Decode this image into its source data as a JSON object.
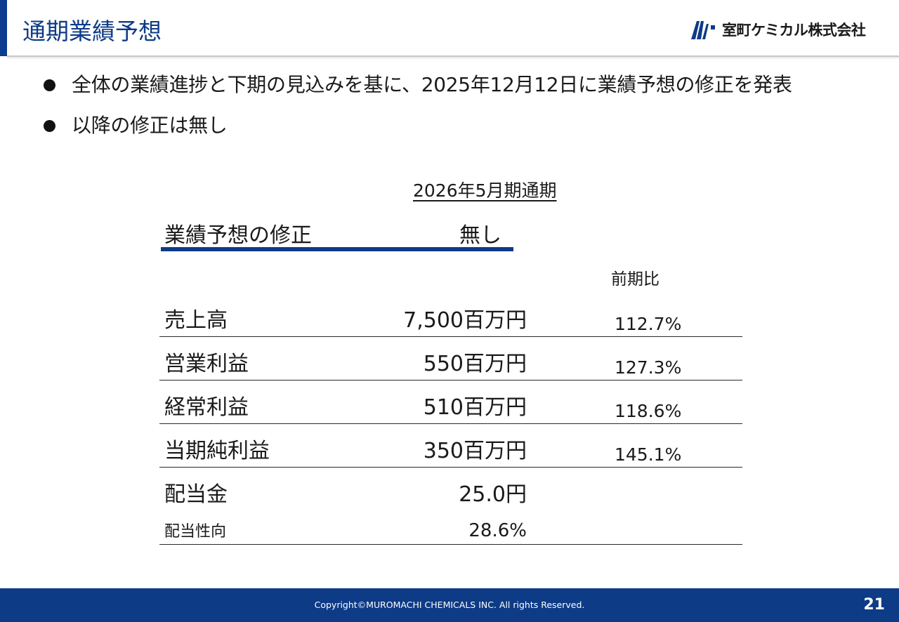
{
  "slide": {
    "title": "通期業績予想",
    "logo_text": "室町ケミカル株式会社",
    "accent_color": "#0d3b86"
  },
  "bullets": [
    "全体の業績進捗と下期の見込みを基に、2025年12月12日に業績予想の修正を発表",
    "以降の修正は無し"
  ],
  "forecast": {
    "period_header": "2026年5月期通期",
    "revision_label": "業績予想の修正",
    "revision_value": "無し",
    "yoy_header": "前期比",
    "rows": [
      {
        "label": "売上高",
        "value": "7,500百万円",
        "yoy": "112.7%"
      },
      {
        "label": "営業利益",
        "value": "550百万円",
        "yoy": "127.3%"
      },
      {
        "label": "経常利益",
        "value": "510百万円",
        "yoy": "118.6%"
      },
      {
        "label": "当期純利益",
        "value": "350百万円",
        "yoy": "145.1%"
      },
      {
        "label": "配当金",
        "value": "25.0円",
        "yoy": ""
      },
      {
        "label": "配当性向",
        "value": "28.6%",
        "yoy": ""
      }
    ]
  },
  "footer": {
    "copyright": "Copyright©MUROMACHI CHEMICALS INC. All rights Reserved.",
    "page_number": "21"
  }
}
